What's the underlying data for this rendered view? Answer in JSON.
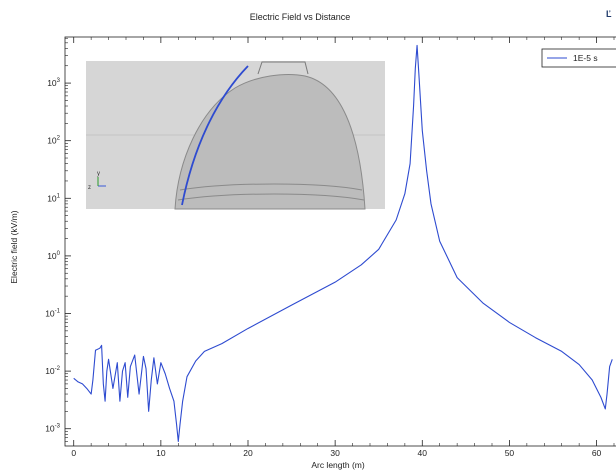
{
  "corner_icon": "toolbar-icon",
  "colors": {
    "series": "#2e4bd0",
    "axis": "#222222",
    "grid": "#c8c8c8",
    "inset_bg": "#d6d6d6",
    "inset_shape": "#b8b8b8"
  },
  "inset": {
    "description_icon": "3d-geometry-render",
    "axis_labels": [
      "y",
      "z"
    ]
  },
  "chart_data": {
    "type": "line",
    "title": "Electric Field vs Distance",
    "xlabel": "Arc length (m)",
    "ylabel": "Electric field (kV/m)",
    "xlim": [
      -1,
      62
    ],
    "ylim_log10": [
      -3.3,
      3.8
    ],
    "yscale": "log",
    "x_ticks": [
      0,
      10,
      20,
      30,
      40,
      50,
      60
    ],
    "y_tick_exponents": [
      -3,
      -2,
      -1,
      0,
      1,
      2,
      3
    ],
    "grid": false,
    "legend": "top-right",
    "series": [
      {
        "name": "1E-5 s",
        "x": [
          0,
          0.5,
          1.0,
          1.5,
          2.0,
          2.2,
          2.5,
          3.0,
          3.2,
          3.4,
          3.6,
          3.8,
          4.0,
          4.5,
          5.0,
          5.3,
          5.6,
          5.9,
          6.2,
          6.5,
          7.0,
          7.5,
          8.0,
          8.3,
          8.6,
          8.9,
          9.2,
          9.6,
          10.0,
          10.5,
          11.0,
          11.5,
          11.8,
          12.0,
          12.2,
          12.5,
          13.0,
          14.0,
          15.0,
          17.0,
          20.0,
          25.0,
          30.0,
          33.0,
          35.0,
          37.0,
          38.0,
          38.6,
          39.0,
          39.2,
          39.4,
          39.6,
          40.0,
          40.5,
          41.0,
          42.0,
          44.0,
          47.0,
          50.0,
          53.0,
          56.0,
          58.0,
          59.5,
          60.5,
          61.0,
          61.2,
          61.5,
          61.8
        ],
        "y": [
          0.0075,
          0.0065,
          0.006,
          0.005,
          0.004,
          0.007,
          0.023,
          0.025,
          0.028,
          0.006,
          0.003,
          0.01,
          0.016,
          0.005,
          0.014,
          0.003,
          0.01,
          0.014,
          0.0035,
          0.012,
          0.019,
          0.004,
          0.018,
          0.011,
          0.002,
          0.007,
          0.017,
          0.006,
          0.014,
          0.009,
          0.005,
          0.003,
          0.0012,
          0.0006,
          0.0012,
          0.003,
          0.008,
          0.015,
          0.022,
          0.03,
          0.055,
          0.14,
          0.35,
          0.7,
          1.3,
          4.2,
          12.0,
          40.0,
          400.0,
          1800.0,
          4500.0,
          1500.0,
          150.0,
          30.0,
          8.0,
          1.8,
          0.42,
          0.15,
          0.07,
          0.038,
          0.022,
          0.013,
          0.007,
          0.0035,
          0.0022,
          0.004,
          0.012,
          0.016
        ]
      }
    ]
  }
}
